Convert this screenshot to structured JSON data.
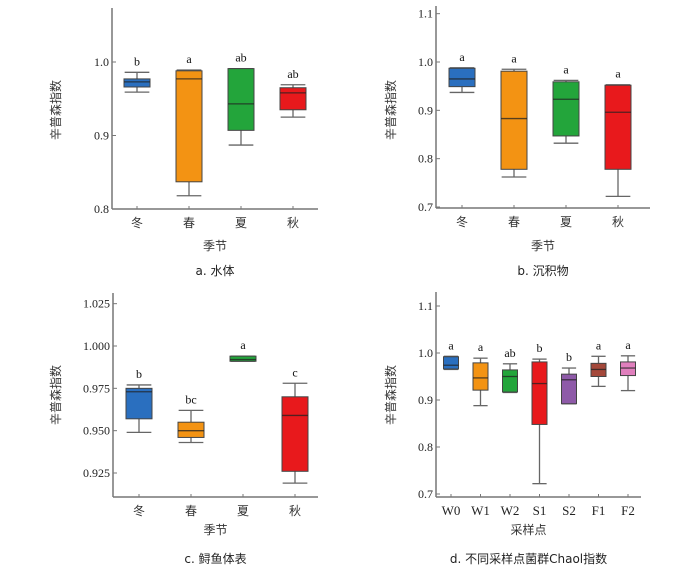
{
  "chart_data": [
    {
      "type": "box",
      "caption": "a. 水体",
      "xlabel": "季节",
      "ylabel": "辛普森指数",
      "ylim": [
        0.8,
        1.08
      ],
      "yticks": [
        0.8,
        0.9,
        1.0
      ],
      "ytick_labels": [
        "0.8",
        "0.9",
        "1.0"
      ],
      "categories": [
        "冬",
        "春",
        "夏",
        "秋"
      ],
      "boxes": [
        {
          "category": "冬",
          "min": 0.959,
          "q1": 0.966,
          "median": 0.973,
          "q3": 0.977,
          "max": 0.986,
          "sig": "b",
          "color": "#2a6fbf"
        },
        {
          "category": "春",
          "min": 0.818,
          "q1": 0.837,
          "median": 0.977,
          "q3": 0.988,
          "max": 0.989,
          "sig": "a",
          "color": "#f39313"
        },
        {
          "category": "夏",
          "min": 0.887,
          "q1": 0.907,
          "median": 0.943,
          "q3": 0.991,
          "max": 0.991,
          "sig": "ab",
          "color": "#23a53b"
        },
        {
          "category": "秋",
          "min": 0.925,
          "q1": 0.935,
          "median": 0.958,
          "q3": 0.965,
          "max": 0.969,
          "sig": "ab",
          "color": "#e8191c"
        }
      ]
    },
    {
      "type": "box",
      "caption": "b. 沉积物",
      "xlabel": "季节",
      "ylabel": "辛普森指数",
      "ylim": [
        0.7,
        1.12
      ],
      "yticks": [
        0.7,
        0.8,
        0.9,
        1.0,
        1.1
      ],
      "ytick_labels": [
        "0.7",
        "0.8",
        "0.9",
        "1.0",
        "1.1"
      ],
      "categories": [
        "冬",
        "春",
        "夏",
        "秋"
      ],
      "boxes": [
        {
          "category": "冬",
          "min": 0.937,
          "q1": 0.949,
          "median": 0.965,
          "q3": 0.987,
          "max": 0.988,
          "sig": "a",
          "color": "#2a6fbf"
        },
        {
          "category": "春",
          "min": 0.762,
          "q1": 0.778,
          "median": 0.883,
          "q3": 0.981,
          "max": 0.985,
          "sig": "a",
          "color": "#f39313"
        },
        {
          "category": "夏",
          "min": 0.832,
          "q1": 0.847,
          "median": 0.923,
          "q3": 0.959,
          "max": 0.962,
          "sig": "a",
          "color": "#23a53b"
        },
        {
          "category": "秋",
          "min": 0.722,
          "q1": 0.778,
          "median": 0.896,
          "q3": 0.952,
          "max": 0.953,
          "sig": "a",
          "color": "#e8191c"
        }
      ]
    },
    {
      "type": "box",
      "caption": "c. 鲟鱼体表",
      "xlabel": "季节",
      "ylabel": "辛普森指数",
      "ylim": [
        0.911,
        1.03
      ],
      "yticks": [
        0.925,
        0.95,
        0.975,
        1.0,
        1.025
      ],
      "ytick_labels": [
        "0.925",
        "0.950",
        "0.975",
        "1.000",
        "1.025"
      ],
      "categories": [
        "冬",
        "春",
        "夏",
        "秋"
      ],
      "boxes": [
        {
          "category": "冬",
          "min": 0.949,
          "q1": 0.957,
          "median": 0.973,
          "q3": 0.975,
          "max": 0.977,
          "sig": "b",
          "color": "#2a6fbf"
        },
        {
          "category": "春",
          "min": 0.943,
          "q1": 0.946,
          "median": 0.95,
          "q3": 0.955,
          "max": 0.962,
          "sig": "bc",
          "color": "#f39313"
        },
        {
          "category": "夏",
          "min": 0.991,
          "q1": 0.991,
          "median": 0.992,
          "q3": 0.994,
          "max": 0.994,
          "sig": "a",
          "color": "#23a53b"
        },
        {
          "category": "秋",
          "min": 0.919,
          "q1": 0.926,
          "median": 0.959,
          "q3": 0.97,
          "max": 0.978,
          "sig": "c",
          "color": "#e8191c"
        }
      ]
    },
    {
      "type": "box",
      "caption": "d. 不同采样点菌群Chaol指数",
      "xlabel": "采样点",
      "ylabel": "辛普森指数",
      "ylim": [
        0.7,
        1.13
      ],
      "yticks": [
        0.7,
        0.8,
        0.9,
        1.0,
        1.1
      ],
      "ytick_labels": [
        "0.7",
        "0.8",
        "0.9",
        "1.0",
        "1.1"
      ],
      "categories": [
        "W0",
        "W1",
        "W2",
        "S1",
        "S2",
        "F1",
        "F2"
      ],
      "boxes": [
        {
          "category": "W0",
          "min": 0.965,
          "q1": 0.966,
          "median": 0.974,
          "q3": 0.992,
          "max": 0.993,
          "sig": "a",
          "color": "#2a6fbf"
        },
        {
          "category": "W1",
          "min": 0.888,
          "q1": 0.921,
          "median": 0.947,
          "q3": 0.979,
          "max": 0.989,
          "sig": "a",
          "color": "#f39313"
        },
        {
          "category": "W2",
          "min": 0.916,
          "q1": 0.917,
          "median": 0.95,
          "q3": 0.964,
          "max": 0.977,
          "sig": "ab",
          "color": "#23a53b"
        },
        {
          "category": "S1",
          "min": 0.722,
          "q1": 0.848,
          "median": 0.935,
          "q3": 0.981,
          "max": 0.987,
          "sig": "b",
          "color": "#e8191c"
        },
        {
          "category": "S2",
          "min": 0.892,
          "q1": 0.892,
          "median": 0.943,
          "q3": 0.955,
          "max": 0.968,
          "sig": "b",
          "color": "#8e5aa8"
        },
        {
          "category": "F1",
          "min": 0.929,
          "q1": 0.95,
          "median": 0.965,
          "q3": 0.978,
          "max": 0.993,
          "sig": "a",
          "color": "#a4483a"
        },
        {
          "category": "F2",
          "min": 0.92,
          "q1": 0.952,
          "median": 0.968,
          "q3": 0.981,
          "max": 0.994,
          "sig": "a",
          "color": "#e07fbd"
        }
      ]
    }
  ]
}
